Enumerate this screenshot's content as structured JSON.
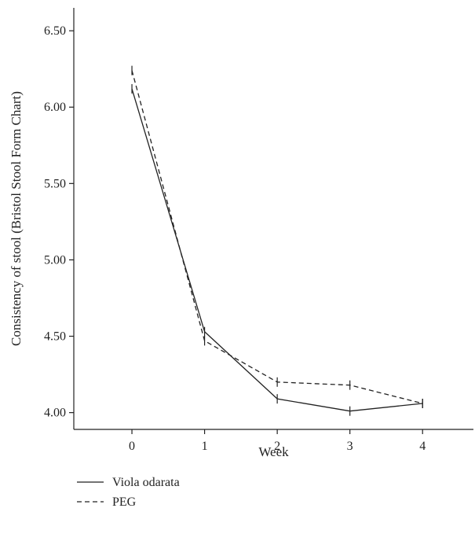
{
  "chart_data": {
    "type": "line",
    "xlabel": "Week",
    "ylabel": "Consistency of stool (Bristol Stool Form Chart)",
    "x": [
      0,
      1,
      2,
      3,
      4
    ],
    "x_ticks": [
      "0",
      "1",
      "2",
      "3",
      "4"
    ],
    "xlim": [
      -0.8,
      4.7
    ],
    "ylim": [
      3.89,
      6.65
    ],
    "y_ticks": [
      4.0,
      4.5,
      5.0,
      5.5,
      6.0,
      6.5
    ],
    "y_tick_labels": [
      "4.00",
      "4.50",
      "5.00",
      "5.50",
      "6.00",
      "6.50"
    ],
    "grid": false,
    "legend_position": "bottom-left",
    "series": [
      {
        "name": "Viola odarata",
        "line_style": "solid",
        "color": "#222222",
        "values": [
          6.12,
          4.53,
          4.09,
          4.01,
          4.06
        ]
      },
      {
        "name": "PEG",
        "line_style": "dashed",
        "color": "#222222",
        "values": [
          6.24,
          4.47,
          4.2,
          4.18,
          4.06
        ]
      }
    ]
  }
}
